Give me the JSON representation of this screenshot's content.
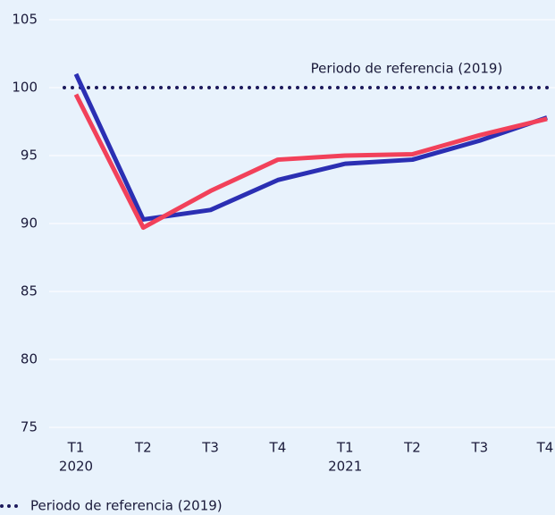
{
  "chart_data": {
    "type": "line",
    "categories": [
      "T1",
      "T2",
      "T3",
      "T4",
      "T1",
      "T2",
      "T3",
      "T4"
    ],
    "group_labels": [
      {
        "index": 0,
        "label": "2020"
      },
      {
        "index": 4,
        "label": "2021"
      }
    ],
    "series": [
      {
        "color": "#2b2fb3",
        "values": [
          101,
          90.3,
          91,
          93.2,
          94.4,
          94.7,
          96.1,
          97.8
        ]
      },
      {
        "color": "#f2415a",
        "values": [
          99.5,
          89.7,
          92.4,
          94.7,
          95.0,
          95.1,
          96.5,
          97.7
        ]
      }
    ],
    "reference_line": {
      "value": 100,
      "label": "Periodo de referencia (2019)",
      "color": "#1c1a5c"
    },
    "annotation": "Periodo de referencia (2019)",
    "ylim": [
      75,
      105
    ],
    "yticks": [
      75,
      80,
      85,
      90,
      95,
      100,
      105
    ],
    "grid": true
  }
}
